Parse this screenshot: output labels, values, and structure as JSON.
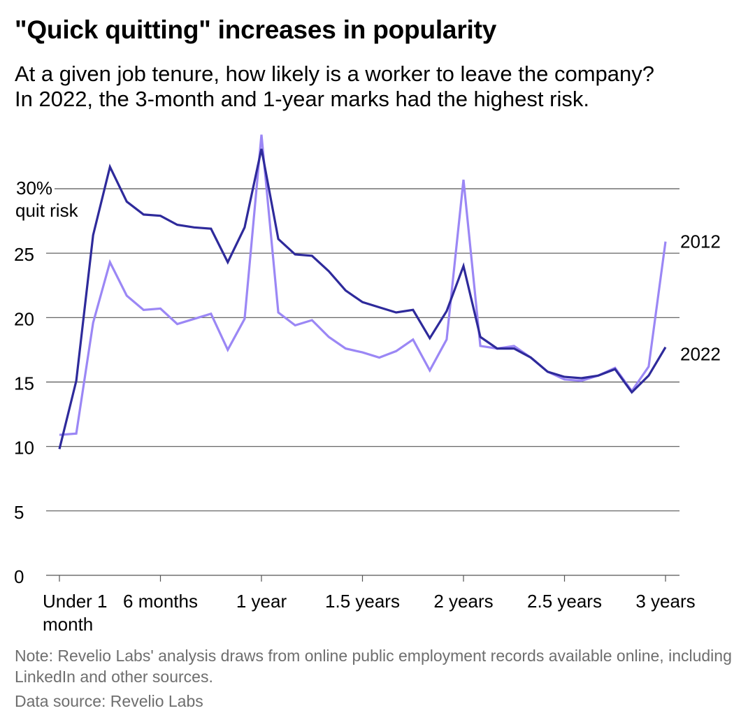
{
  "title": "\"Quick quitting\" increases in popularity",
  "subtitle_lines": [
    "At a given job tenure, how likely is a worker to leave the company?",
    "In 2022, the 3-month and 1-year marks had the highest risk."
  ],
  "footer": {
    "note": "Note: Revelio Labs' analysis draws from online public employment records available online, including LinkedIn and other sources.",
    "source": "Data source: Revelio Labs"
  },
  "colors": {
    "series_2012": "#9b87f5",
    "series_2022": "#2e2a9b",
    "gridline": "#555555",
    "note_text": "#6e6e6e"
  },
  "chart_data": {
    "type": "line",
    "title": "\"Quick quitting\" increases in popularity",
    "xlabel": "",
    "ylabel": "quit risk",
    "unit_label_lines": [
      "30%",
      "quit risk"
    ],
    "x": [
      1,
      2,
      3,
      4,
      5,
      6,
      7,
      8,
      9,
      10,
      11,
      12,
      13,
      14,
      15,
      16,
      17,
      18,
      19,
      20,
      21,
      22,
      23,
      24,
      25,
      26,
      27,
      28,
      29,
      30,
      31,
      32,
      33,
      34,
      35,
      36,
      37
    ],
    "xlim": [
      1,
      37
    ],
    "x_ticks": [
      {
        "x": 1,
        "label_lines": [
          "Under 1",
          "month"
        ]
      },
      {
        "x": 7,
        "label_lines": [
          "6 months"
        ]
      },
      {
        "x": 13,
        "label_lines": [
          "1 year"
        ]
      },
      {
        "x": 19,
        "label_lines": [
          "1.5 years"
        ]
      },
      {
        "x": 25,
        "label_lines": [
          "2 years"
        ]
      },
      {
        "x": 31,
        "label_lines": [
          "2.5 years"
        ]
      },
      {
        "x": 37,
        "label_lines": [
          "3 years"
        ]
      }
    ],
    "ylim": [
      0,
      34
    ],
    "y_ticks": [
      {
        "value": 0,
        "label": "0"
      },
      {
        "value": 5,
        "label": "5"
      },
      {
        "value": 10,
        "label": "10"
      },
      {
        "value": 15,
        "label": "15"
      },
      {
        "value": 20,
        "label": "20"
      },
      {
        "value": 25,
        "label": "25"
      },
      {
        "value": 30,
        "label": ""
      }
    ],
    "grid": true,
    "series": [
      {
        "name": "2012",
        "label": "2012",
        "values": [
          10.9,
          11.0,
          19.6,
          24.3,
          21.7,
          20.6,
          20.7,
          19.5,
          19.9,
          20.3,
          17.5,
          19.9,
          34.2,
          20.4,
          19.4,
          19.8,
          18.5,
          17.6,
          17.3,
          16.9,
          17.4,
          18.3,
          15.9,
          18.3,
          30.7,
          17.8,
          17.6,
          17.8,
          16.9,
          15.8,
          15.2,
          15.1,
          15.5,
          16.1,
          14.3,
          16.2,
          25.9
        ]
      },
      {
        "name": "2022",
        "label": "2022",
        "values": [
          9.8,
          15.1,
          26.4,
          31.7,
          29.0,
          28.0,
          27.9,
          27.2,
          27.0,
          26.9,
          24.3,
          27.0,
          33.1,
          26.1,
          24.9,
          24.8,
          23.6,
          22.1,
          21.2,
          20.8,
          20.4,
          20.6,
          18.4,
          20.5,
          24.0,
          18.5,
          17.6,
          17.6,
          16.9,
          15.8,
          15.4,
          15.3,
          15.5,
          16.0,
          14.2,
          15.5,
          17.7
        ]
      }
    ]
  }
}
